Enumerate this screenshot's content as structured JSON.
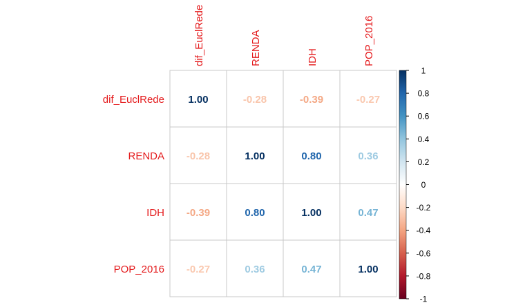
{
  "chart_data": {
    "type": "heatmap",
    "variables": [
      "dif_EuclRede",
      "RENDA",
      "IDH",
      "POP_2016"
    ],
    "matrix": [
      [
        1.0,
        -0.28,
        -0.39,
        -0.27
      ],
      [
        -0.28,
        1.0,
        0.8,
        0.36
      ],
      [
        -0.39,
        0.8,
        1.0,
        0.47
      ],
      [
        -0.27,
        0.36,
        0.47,
        1.0
      ]
    ],
    "value_labels": [
      [
        "1.00",
        "-0.28",
        "-0.39",
        "-0.27"
      ],
      [
        "-0.28",
        "1.00",
        "0.80",
        "0.36"
      ],
      [
        "-0.39",
        "0.80",
        "1.00",
        "0.47"
      ],
      [
        "-0.27",
        "0.36",
        "0.47",
        "1.00"
      ]
    ],
    "colorbar": {
      "range": [
        -1,
        1
      ],
      "ticks": [
        1,
        0.8,
        0.6,
        0.4,
        0.2,
        0,
        -0.2,
        -0.4,
        -0.6,
        -0.8,
        -1
      ],
      "tick_labels": [
        "1",
        "0.8",
        "0.6",
        "0.4",
        "0.2",
        "0",
        "-0.2",
        "-0.4",
        "-0.6",
        "-0.8",
        "-1"
      ],
      "palette": [
        "#67001F",
        "#B2182B",
        "#D6604D",
        "#F4A582",
        "#FDDBC7",
        "#FFFFFF",
        "#D1E5F0",
        "#92C5DE",
        "#4393C3",
        "#2166AC",
        "#053061"
      ]
    },
    "label_color": "#E41A1C",
    "grid": true,
    "legend_position": "right"
  }
}
